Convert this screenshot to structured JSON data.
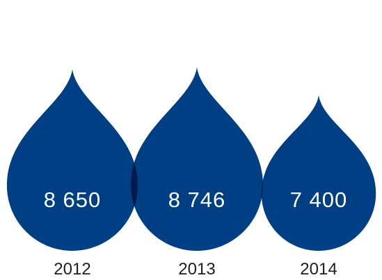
{
  "chart_data": {
    "type": "bar",
    "title": "",
    "categories": [
      "2012",
      "2013",
      "2014"
    ],
    "values": [
      8650,
      8746,
      7400
    ],
    "value_labels": [
      "8 650",
      "8 746",
      "7 400"
    ],
    "colors": {
      "drop": "#003f84",
      "overlap": "#001a4e",
      "value_text": "#ffffff",
      "year_text": "#1e1e1e"
    }
  }
}
